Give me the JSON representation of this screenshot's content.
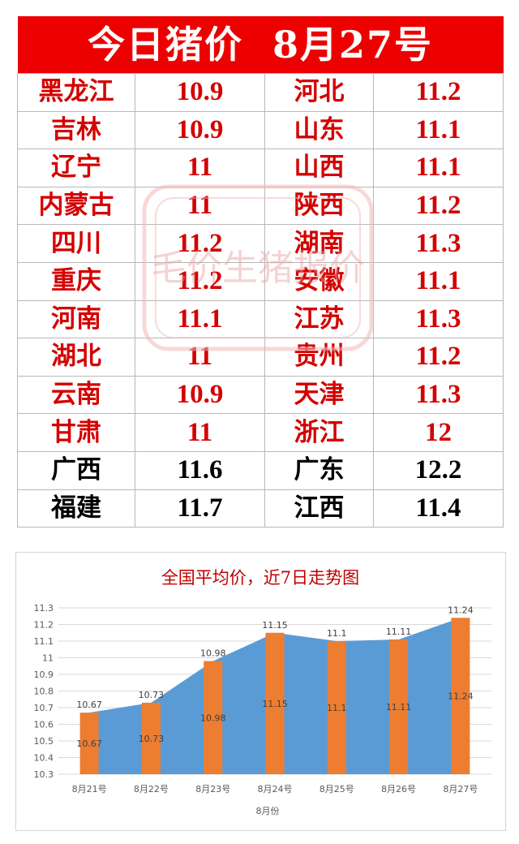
{
  "header": {
    "title": "今日猪价  8月27号"
  },
  "colors": {
    "header_bg": "#ec0000",
    "red_text": "#d40000",
    "black_text": "#000000",
    "area_fill": "#5b9bd5",
    "bar_fill": "#ed7d31",
    "watermark": "#f0b8b8"
  },
  "watermark": {
    "text": "毛价生猪报价"
  },
  "rows": [
    {
      "left_province": "黑龙江",
      "left_price": "10.9",
      "right_province": "河北",
      "right_price": "11.2"
    },
    {
      "left_province": "吉林",
      "left_price": "10.9",
      "right_province": "山东",
      "right_price": "11.1"
    },
    {
      "left_province": "辽宁",
      "left_price": "11",
      "right_province": "山西",
      "right_price": "11.1"
    },
    {
      "left_province": "内蒙古",
      "left_price": "11",
      "right_province": "陕西",
      "right_price": "11.2"
    },
    {
      "left_province": "四川",
      "left_price": "11.2",
      "right_province": "湖南",
      "right_price": "11.3"
    },
    {
      "left_province": "重庆",
      "left_price": "11.2",
      "right_province": "安徽",
      "right_price": "11.1"
    },
    {
      "left_province": "河南",
      "left_price": "11.1",
      "right_province": "江苏",
      "right_price": "11.3"
    },
    {
      "left_province": "湖北",
      "left_price": "11",
      "right_province": "贵州",
      "right_price": "11.2"
    },
    {
      "left_province": "云南",
      "left_price": "10.9",
      "right_province": "天津",
      "right_price": "11.3"
    },
    {
      "left_province": "甘肃",
      "left_price": "11",
      "right_province": "浙江",
      "right_price": "12"
    },
    {
      "left_province": "广西",
      "left_price": "11.6",
      "right_province": "广东",
      "right_price": "12.2"
    },
    {
      "left_province": "福建",
      "left_price": "11.7",
      "right_province": "江西",
      "right_price": "11.4"
    }
  ],
  "chart_data": {
    "type": "bar",
    "title": "全国平均价，近7日走势图",
    "xlabel": "8月份",
    "ylabel": "",
    "categories": [
      "8月21号",
      "8月22号",
      "8月23号",
      "8月24号",
      "8月25号",
      "8月26号",
      "8月27号"
    ],
    "series": [
      {
        "type": "area",
        "values": [
          10.67,
          10.73,
          10.98,
          11.15,
          11.1,
          11.11,
          11.24
        ]
      },
      {
        "type": "bar",
        "values": [
          10.67,
          10.73,
          10.98,
          11.15,
          11.1,
          11.11,
          11.24
        ]
      }
    ],
    "ylim": [
      10.3,
      11.3
    ],
    "yticks": [
      "10.3",
      "10.4",
      "10.5",
      "10.6",
      "10.7",
      "10.8",
      "10.9",
      "11",
      "11.1",
      "11.2",
      "11.3"
    ],
    "grid": true,
    "legend": "none"
  }
}
